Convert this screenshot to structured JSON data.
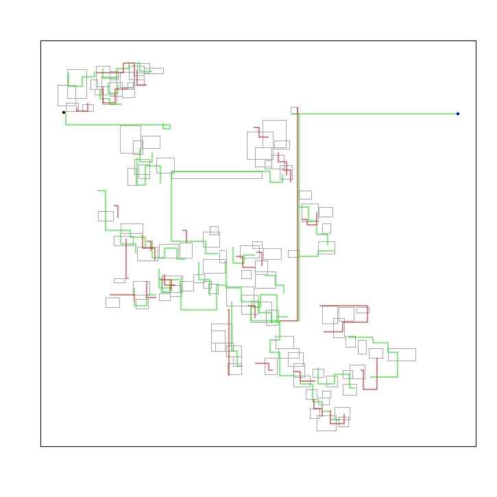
{
  "colors": {
    "background": "#ffffff",
    "frame": "#000000",
    "boxes": "#a6a6a6",
    "green_path": "#00dd00",
    "red_path": "#cc0000",
    "start_point": "#000000",
    "end_point": "#0000cc"
  },
  "markers": {
    "start": {
      "shape": "dot",
      "color": "black"
    },
    "end": {
      "shape": "dot",
      "color": "blue"
    }
  },
  "has_text": false
}
